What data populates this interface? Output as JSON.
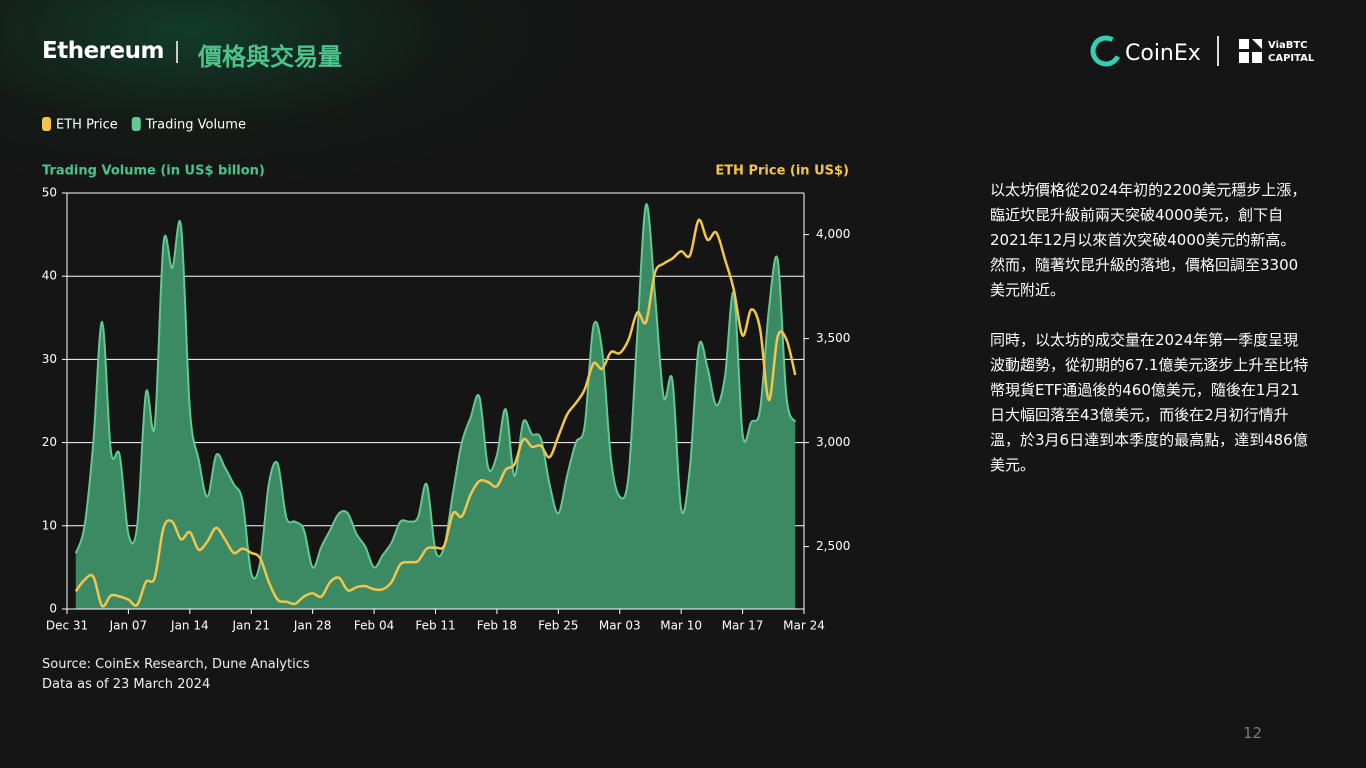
{
  "header": {
    "title": "Ethereum",
    "subtitle": "價格與交易量"
  },
  "logos": {
    "coinex": "CoinEx",
    "viabtc": [
      "ViaBTC",
      "CAPITAL"
    ]
  },
  "chart_data": {
    "type": "combo",
    "ylabel": "Trading Volume (in US$ billon)",
    "y2label": "ETH Price (in US$)",
    "categories": [
      "Dec 31",
      null,
      null,
      null,
      null,
      null,
      null,
      "Jan 07",
      null,
      null,
      null,
      null,
      null,
      null,
      "Jan 14",
      null,
      null,
      null,
      null,
      null,
      null,
      "Jan 21",
      null,
      null,
      null,
      null,
      null,
      null,
      "Jan 28",
      null,
      null,
      null,
      null,
      null,
      null,
      "Feb 04",
      null,
      null,
      null,
      null,
      null,
      null,
      "Feb 11",
      null,
      null,
      null,
      null,
      null,
      null,
      "Feb 18",
      null,
      null,
      null,
      null,
      null,
      null,
      "Feb 25",
      null,
      null,
      null,
      null,
      null,
      null,
      "Mar 03",
      null,
      null,
      null,
      null,
      null,
      null,
      "Mar 10",
      null,
      null,
      null,
      null,
      null,
      null,
      "Mar 17",
      null,
      null,
      null,
      null,
      null,
      null,
      "Mar 24"
    ],
    "series": [
      {
        "name": "ETH Price",
        "type": "line",
        "axis": "y2",
        "color": "#f2c54b",
        "values": [
          null,
          2285,
          2340,
          2355,
          2215,
          2265,
          2260,
          2245,
          2220,
          2330,
          2350,
          2590,
          2620,
          2535,
          2570,
          2485,
          2525,
          2590,
          2535,
          2470,
          2490,
          2470,
          2445,
          2330,
          2245,
          2235,
          2225,
          2260,
          2275,
          2260,
          2330,
          2350,
          2290,
          2305,
          2310,
          2295,
          2295,
          2330,
          2415,
          2425,
          2430,
          2490,
          2495,
          2505,
          2660,
          2645,
          2750,
          2815,
          2810,
          2790,
          2870,
          2895,
          3015,
          2980,
          2985,
          2930,
          3030,
          3135,
          3190,
          3255,
          3380,
          3355,
          3435,
          3430,
          3495,
          3625,
          3580,
          3815,
          3860,
          3885,
          3920,
          3900,
          4070,
          3975,
          4010,
          3880,
          3735,
          3515,
          3640,
          3545,
          3205,
          3510,
          3495,
          3325,
          null
        ]
      },
      {
        "name": "Trading Volume",
        "type": "area",
        "color": "#3b8a64",
        "stroke": "#63c892",
        "values": [
          null,
          6.7,
          10,
          20,
          34.5,
          19,
          18.5,
          9,
          10,
          26,
          22,
          44,
          41,
          46,
          24,
          18,
          13.5,
          18.5,
          17,
          15,
          13,
          4.3,
          5.5,
          15,
          17.5,
          11,
          10.5,
          9.5,
          5,
          7.5,
          9.5,
          11.5,
          11.5,
          9,
          7.5,
          5,
          6.5,
          8,
          10.5,
          10.5,
          11,
          15,
          7,
          7.5,
          14,
          20,
          23,
          25.5,
          17,
          18.5,
          24,
          16,
          22.5,
          21,
          20.5,
          15,
          11.5,
          16,
          20,
          22,
          34,
          31,
          18,
          13.5,
          16,
          33,
          48.6,
          38,
          25.5,
          27.5,
          12,
          17,
          31.5,
          29,
          24.5,
          28,
          38,
          21,
          22.5,
          24,
          36,
          42,
          25.5,
          22.5,
          null
        ]
      }
    ],
    "ylim": [
      0,
      50
    ],
    "yticks": [
      0,
      10,
      20,
      30,
      40,
      50
    ],
    "y2lim": [
      2200,
      4200
    ],
    "y2ticks": [
      {
        "value": 2500,
        "label": "2,500"
      },
      {
        "value": 3000,
        "label": "3,000"
      },
      {
        "value": 3500,
        "label": "3,500"
      },
      {
        "value": 4000,
        "label": "4,000"
      }
    ],
    "grid": true,
    "legend": "top-left"
  },
  "source": [
    "Source: CoinEx Research, Dune Analytics",
    "Data as of 23 March 2024"
  ],
  "text": [
    "以太坊價格從2024年初的2200美元穩步上漲，臨近坎昆升級前兩天突破4000美元，創下自2021年12月以來首次突破4000美元的新高。 然而，隨著坎昆升級的落地，價格回調至3300美元附近。",
    "同時，以太坊的成交量在2024年第一季度呈現波動趨勢，從初期的67.1億美元逐步上升至比特幣現貨ETF通過後的460億美元，隨後在1月21日大幅回落至43億美元，而後在2月初行情升溫，於3月6日達到本季度的最高點，達到486億美元。"
  ],
  "page_number": "12"
}
